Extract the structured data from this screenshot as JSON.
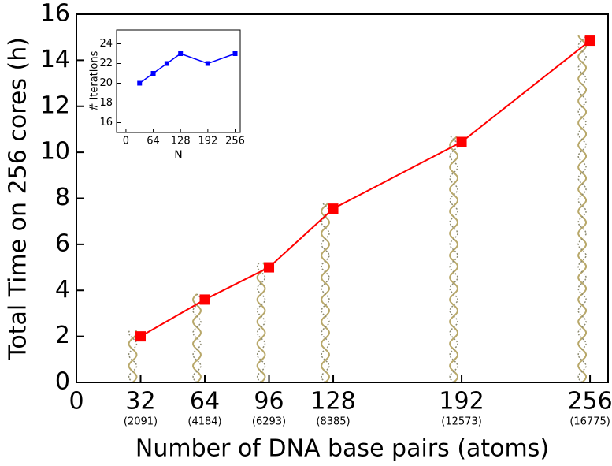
{
  "chart_data": [
    {
      "type": "line",
      "x_label": "Number of DNA base pairs (atoms)",
      "y_label": "Total Time on 256 cores (h)",
      "x": [
        32,
        64,
        96,
        128,
        192,
        256
      ],
      "series": [
        {
          "color": "#ff0000",
          "values": [
            2,
            3.6,
            5,
            7.55,
            10.45,
            14.85
          ]
        }
      ],
      "xlim": [
        0,
        265
      ],
      "ylim": [
        0,
        16
      ],
      "xticks": [
        0,
        32,
        64,
        96,
        128,
        192,
        256
      ],
      "xtick_sublabels": [
        null,
        "(2091)",
        "(4184)",
        "(6293)",
        "(8385)",
        "(12573)",
        "(16775)"
      ],
      "yticks": [
        0,
        2,
        4,
        6,
        8,
        10,
        12,
        14,
        16
      ]
    },
    {
      "type": "line",
      "x_label": "N",
      "y_label": "# iterations",
      "x": [
        32,
        64,
        96,
        128,
        192,
        256
      ],
      "series": [
        {
          "color": "#0000ff",
          "values": [
            20,
            21,
            22,
            23,
            22,
            23
          ]
        }
      ],
      "xlim": [
        -22,
        268
      ],
      "ylim": [
        15,
        25.4
      ],
      "xticks": [
        0,
        64,
        128,
        192,
        256
      ],
      "yticks": [
        16,
        18,
        20,
        22,
        24
      ]
    }
  ]
}
